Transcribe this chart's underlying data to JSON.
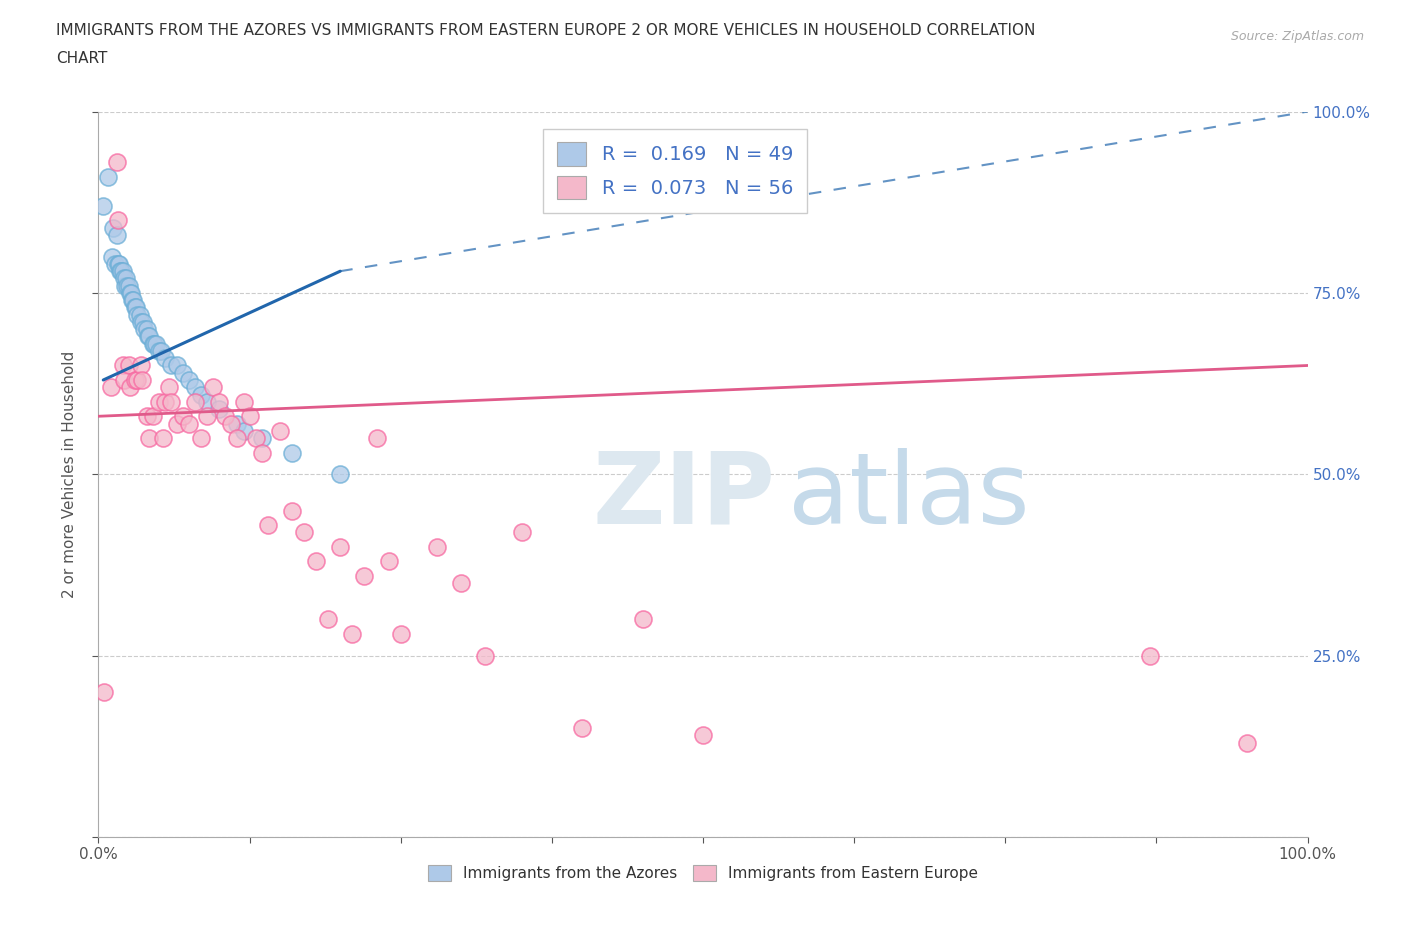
{
  "title_line1": "IMMIGRANTS FROM THE AZORES VS IMMIGRANTS FROM EASTERN EUROPE 2 OR MORE VEHICLES IN HOUSEHOLD CORRELATION",
  "title_line2": "CHART",
  "source": "Source: ZipAtlas.com",
  "ylabel": "2 or more Vehicles in Household",
  "xlim": [
    0.0,
    100.0
  ],
  "ylim": [
    0.0,
    100.0
  ],
  "yticks": [
    0.0,
    25.0,
    50.0,
    75.0,
    100.0
  ],
  "ytick_labels": [
    "",
    "25.0%",
    "50.0%",
    "75.0%",
    "100.0%"
  ],
  "xticks": [
    0.0,
    12.5,
    25.0,
    37.5,
    50.0,
    62.5,
    75.0,
    87.5,
    100.0
  ],
  "xtick_labels": [
    "0.0%",
    "",
    "",
    "",
    "",
    "",
    "",
    "",
    "100.0%"
  ],
  "blue_R": 0.169,
  "blue_N": 49,
  "pink_R": 0.073,
  "pink_N": 56,
  "blue_color": "#aec9e8",
  "pink_color": "#f4b8ca",
  "blue_edge_color": "#6baed6",
  "pink_edge_color": "#f768a1",
  "blue_line_color": "#2166ac",
  "pink_line_color": "#e05a8a",
  "background_color": "#ffffff",
  "blue_scatter_x": [
    0.4,
    0.8,
    1.1,
    1.2,
    1.4,
    1.5,
    1.6,
    1.7,
    1.8,
    1.9,
    2.0,
    2.1,
    2.2,
    2.3,
    2.4,
    2.5,
    2.6,
    2.7,
    2.8,
    2.9,
    3.0,
    3.1,
    3.2,
    3.4,
    3.5,
    3.7,
    3.8,
    4.0,
    4.1,
    4.2,
    4.5,
    4.6,
    4.8,
    5.0,
    5.2,
    5.5,
    6.0,
    6.5,
    7.0,
    7.5,
    8.0,
    8.5,
    9.0,
    10.0,
    11.5,
    12.0,
    13.5,
    16.0,
    20.0
  ],
  "blue_scatter_y": [
    87.0,
    91.0,
    80.0,
    84.0,
    79.0,
    83.0,
    79.0,
    79.0,
    78.0,
    78.0,
    78.0,
    77.0,
    76.0,
    77.0,
    76.0,
    76.0,
    75.0,
    75.0,
    74.0,
    74.0,
    73.0,
    73.0,
    72.0,
    72.0,
    71.0,
    71.0,
    70.0,
    70.0,
    69.0,
    69.0,
    68.0,
    68.0,
    68.0,
    67.0,
    67.0,
    66.0,
    65.0,
    65.0,
    64.0,
    63.0,
    62.0,
    61.0,
    60.0,
    59.0,
    57.0,
    56.0,
    55.0,
    53.0,
    50.0
  ],
  "pink_scatter_x": [
    0.5,
    1.0,
    1.5,
    1.6,
    2.0,
    2.1,
    2.5,
    2.6,
    3.0,
    3.2,
    3.5,
    3.6,
    4.0,
    4.2,
    4.5,
    5.0,
    5.3,
    5.5,
    5.8,
    6.0,
    6.5,
    7.0,
    7.5,
    8.0,
    8.5,
    9.0,
    9.5,
    10.0,
    10.5,
    11.0,
    11.5,
    12.0,
    12.5,
    13.0,
    13.5,
    14.0,
    15.0,
    16.0,
    17.0,
    18.0,
    19.0,
    20.0,
    21.0,
    22.0,
    23.0,
    24.0,
    25.0,
    28.0,
    30.0,
    32.0,
    35.0,
    40.0,
    45.0,
    50.0,
    87.0,
    95.0
  ],
  "pink_scatter_y": [
    20.0,
    62.0,
    93.0,
    85.0,
    65.0,
    63.0,
    65.0,
    62.0,
    63.0,
    63.0,
    65.0,
    63.0,
    58.0,
    55.0,
    58.0,
    60.0,
    55.0,
    60.0,
    62.0,
    60.0,
    57.0,
    58.0,
    57.0,
    60.0,
    55.0,
    58.0,
    62.0,
    60.0,
    58.0,
    57.0,
    55.0,
    60.0,
    58.0,
    55.0,
    53.0,
    43.0,
    56.0,
    45.0,
    42.0,
    38.0,
    30.0,
    40.0,
    28.0,
    36.0,
    55.0,
    38.0,
    28.0,
    40.0,
    35.0,
    25.0,
    42.0,
    15.0,
    30.0,
    14.0,
    25.0,
    13.0
  ],
  "blue_line_x0": 0.4,
  "blue_line_x1": 20.0,
  "blue_line_y0": 63.0,
  "blue_line_y1": 78.0,
  "blue_dash_x0": 20.0,
  "blue_dash_x1": 100.0,
  "blue_dash_y0": 78.0,
  "blue_dash_y1": 100.0,
  "pink_line_x0": 0.0,
  "pink_line_x1": 100.0,
  "pink_line_y0": 58.0,
  "pink_line_y1": 65.0
}
